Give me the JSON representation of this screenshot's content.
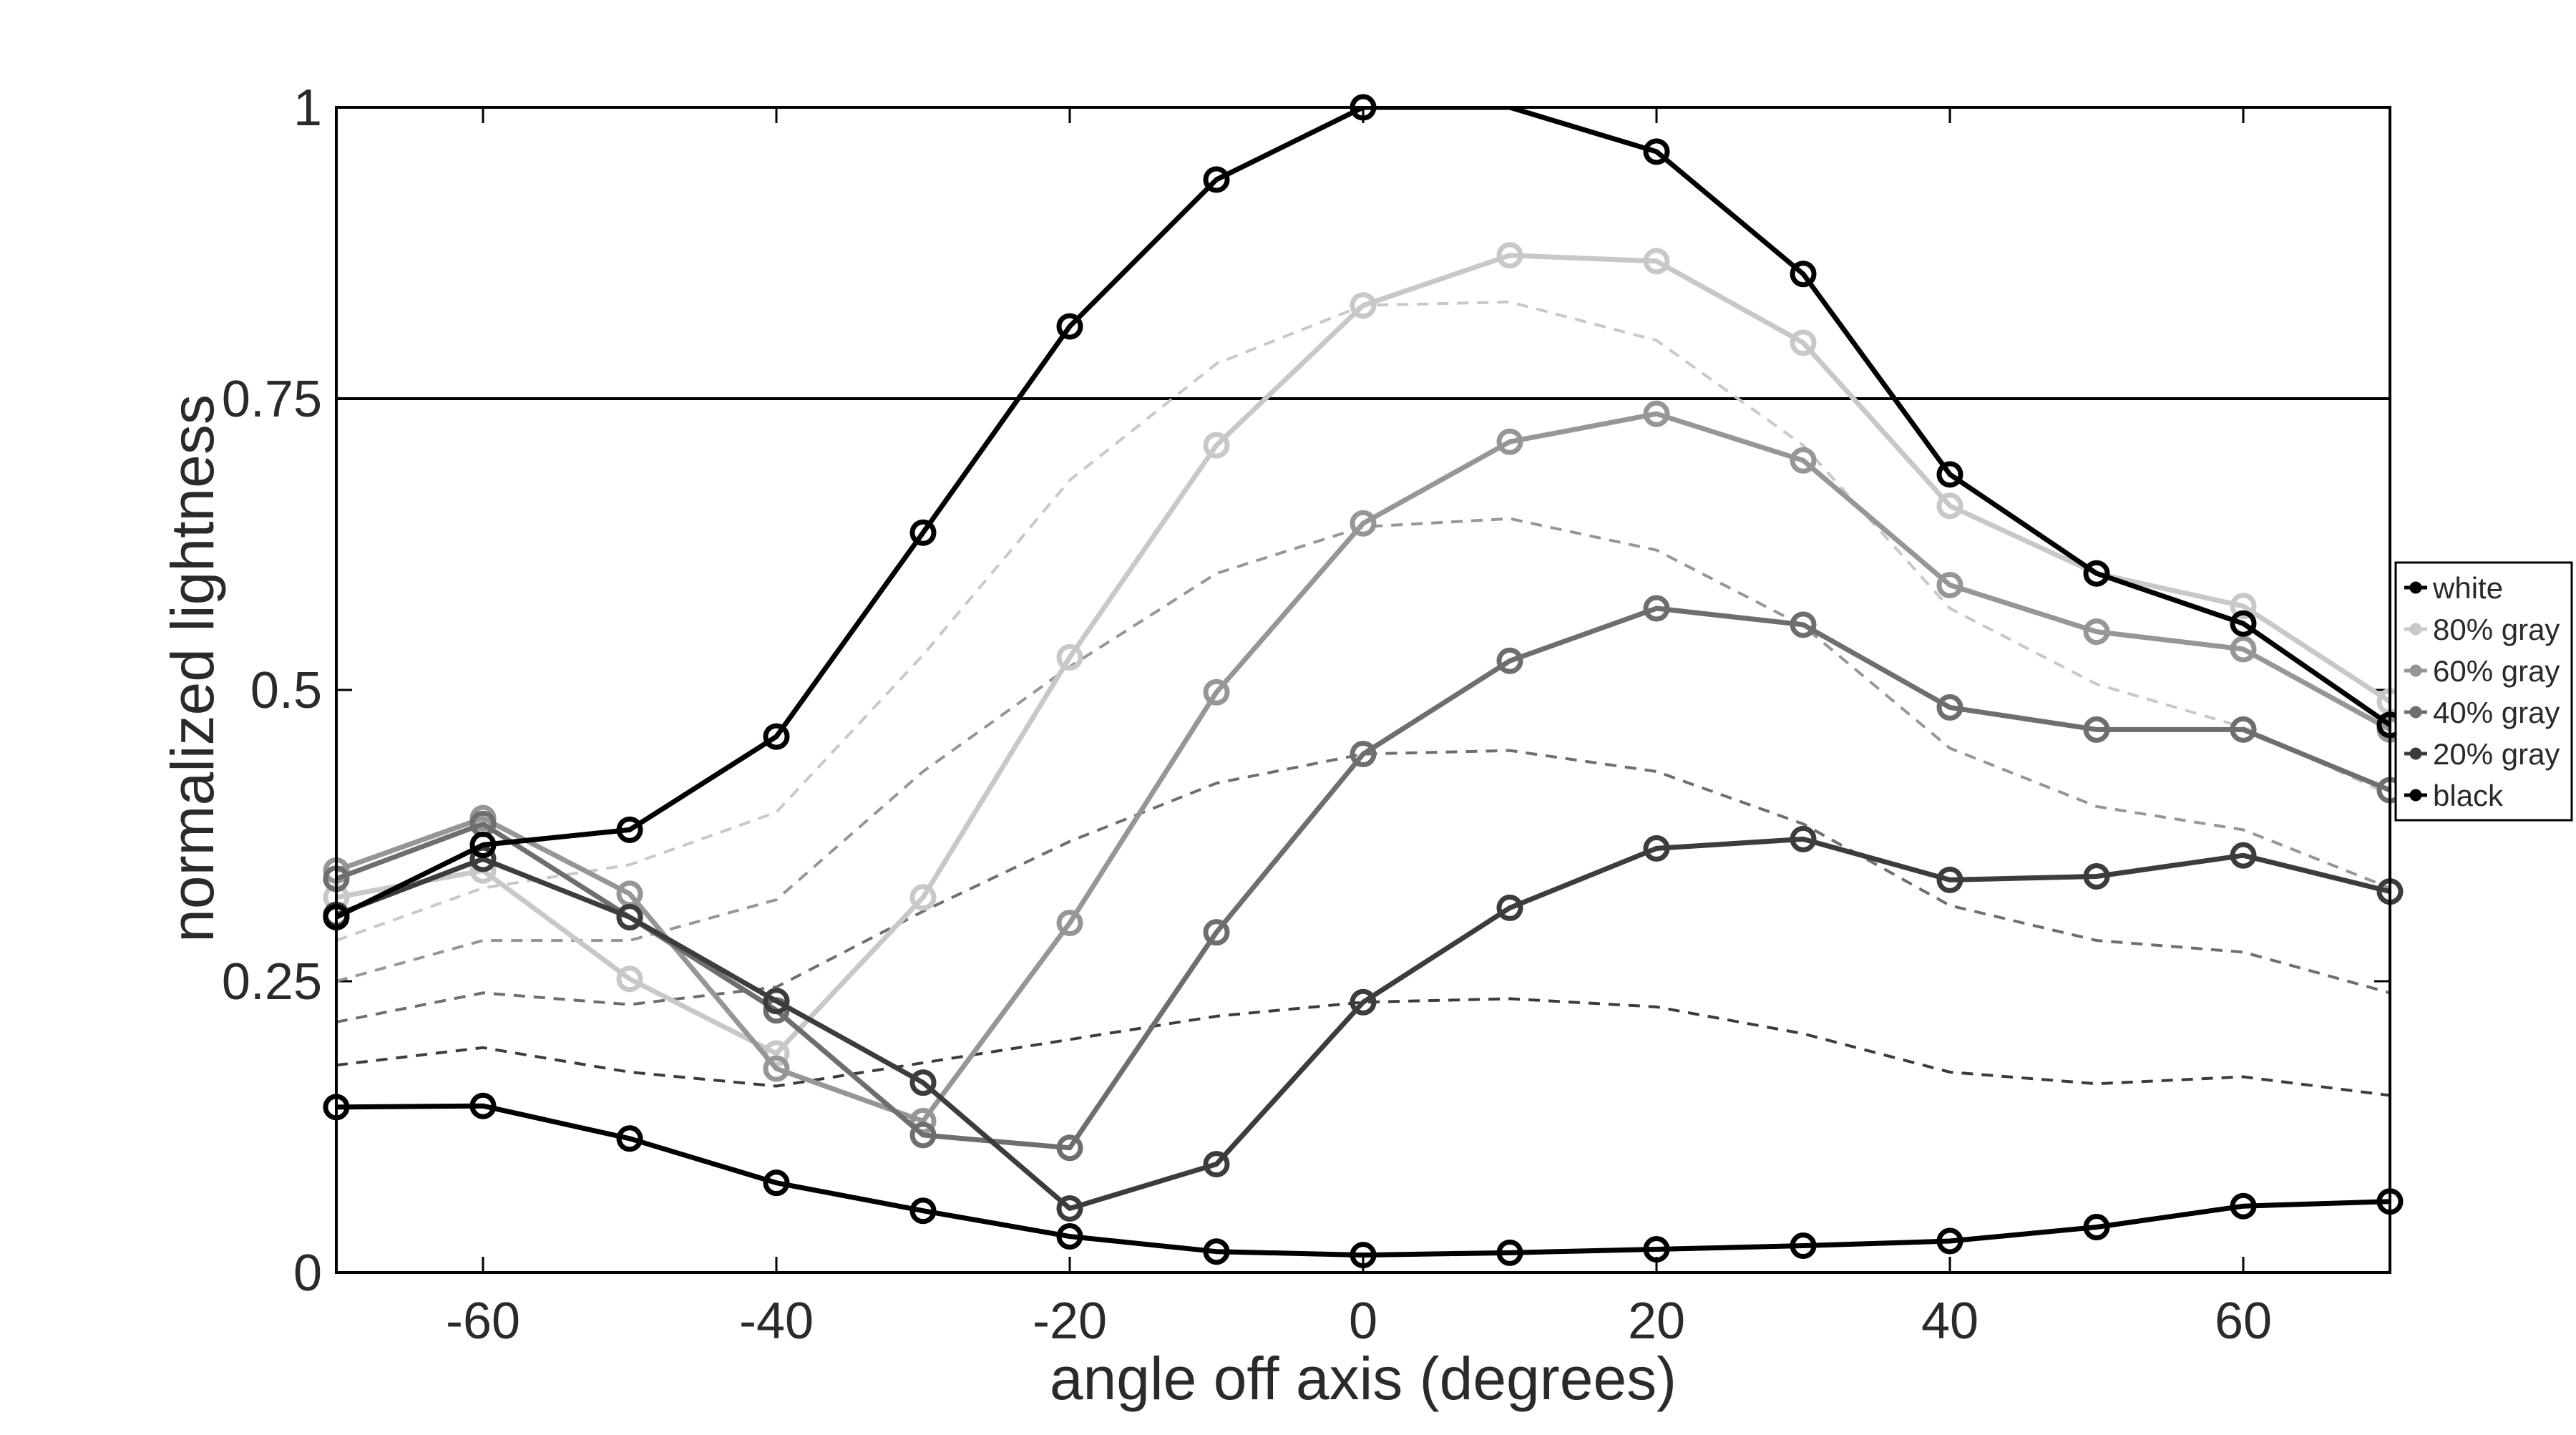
{
  "chart_data": {
    "type": "line",
    "title": "",
    "xlabel": "angle off axis (degrees)",
    "ylabel": "normalized lightness",
    "xlim": [
      -70,
      70
    ],
    "ylim": [
      0,
      1
    ],
    "xticks": [
      -60,
      -40,
      -20,
      0,
      20,
      40,
      60
    ],
    "xtick_labels": [
      "-60",
      "-40",
      "-20",
      "0",
      "20",
      "40",
      "60"
    ],
    "yticks": [
      0,
      0.25,
      0.5,
      0.75,
      1
    ],
    "ytick_labels": [
      "0",
      "0.25",
      "0.5",
      "0.75",
      "1"
    ],
    "grid": false,
    "legend_position": "right",
    "x": [
      -70,
      -60,
      -50,
      -40,
      -30,
      -20,
      -10,
      0,
      10,
      20,
      30,
      40,
      50,
      60,
      70
    ],
    "reference_line": {
      "y": 0.75,
      "color": "#000000"
    },
    "series": [
      {
        "name": "white",
        "color": "#000000",
        "values": [
          0.305,
          0.367,
          0.38,
          0.46,
          0.635,
          0.812,
          0.938,
          1.0,
          1.0,
          0.962,
          0.857,
          0.685,
          0.6,
          0.557,
          0.47
        ]
      },
      {
        "name": "80% gray",
        "color": "#c8c8c8",
        "values": [
          0.322,
          0.345,
          0.252,
          0.188,
          0.322,
          0.528,
          0.71,
          0.83,
          0.873,
          0.868,
          0.798,
          0.658,
          0.6,
          0.572,
          0.49
        ]
      },
      {
        "name": "60% gray",
        "color": "#969696",
        "values": [
          0.345,
          0.39,
          0.325,
          0.175,
          0.13,
          0.3,
          0.498,
          0.643,
          0.713,
          0.737,
          0.697,
          0.59,
          0.55,
          0.535,
          0.466
        ]
      },
      {
        "name": "40% gray",
        "color": "#6e6e6e",
        "values": [
          0.338,
          0.385,
          0.305,
          0.225,
          0.118,
          0.107,
          0.292,
          0.445,
          0.525,
          0.57,
          0.556,
          0.485,
          0.466,
          0.466,
          0.414
        ]
      },
      {
        "name": "20% gray",
        "color": "#3c3c3c",
        "values": [
          0.307,
          0.355,
          0.305,
          0.233,
          0.163,
          0.055,
          0.093,
          0.232,
          0.313,
          0.364,
          0.372,
          0.337,
          0.34,
          0.358,
          0.327
        ]
      },
      {
        "name": "black",
        "color": "#000000",
        "values": [
          0.142,
          0.143,
          0.115,
          0.077,
          0.053,
          0.031,
          0.018,
          0.015,
          0.017,
          0.02,
          0.023,
          0.027,
          0.039,
          0.057,
          0.061
        ]
      }
    ],
    "dashed_series": [
      {
        "color": "#c8c8c8",
        "values": [
          0.285,
          0.33,
          0.35,
          0.395,
          0.53,
          0.68,
          0.78,
          0.83,
          0.833,
          0.8,
          0.71,
          0.57,
          0.505,
          0.468,
          0.41
        ]
      },
      {
        "color": "#969696",
        "values": [
          0.25,
          0.285,
          0.285,
          0.32,
          0.43,
          0.52,
          0.6,
          0.64,
          0.647,
          0.62,
          0.555,
          0.45,
          0.4,
          0.38,
          0.33
        ]
      },
      {
        "color": "#6e6e6e",
        "values": [
          0.215,
          0.24,
          0.23,
          0.245,
          0.31,
          0.37,
          0.42,
          0.445,
          0.448,
          0.43,
          0.385,
          0.315,
          0.285,
          0.275,
          0.24
        ]
      },
      {
        "color": "#3c3c3c",
        "values": [
          0.178,
          0.193,
          0.172,
          0.16,
          0.18,
          0.2,
          0.22,
          0.232,
          0.235,
          0.228,
          0.205,
          0.172,
          0.162,
          0.168,
          0.152
        ]
      }
    ]
  }
}
